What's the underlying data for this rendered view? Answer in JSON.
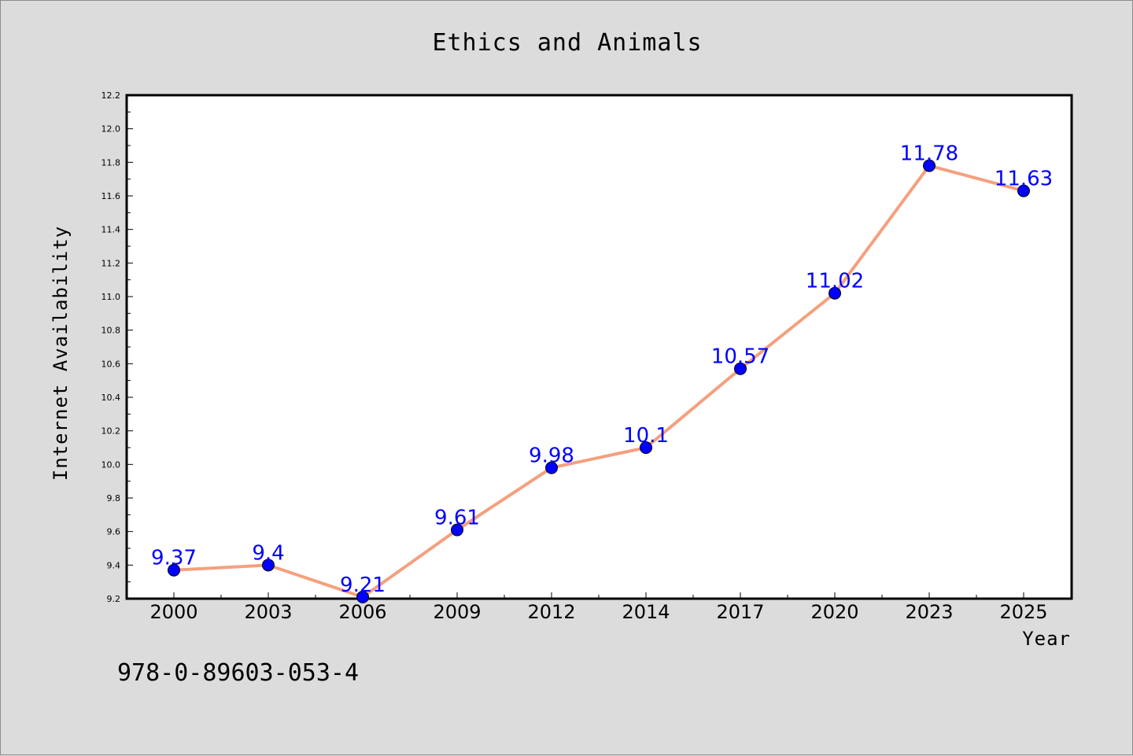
{
  "chart_data": {
    "type": "line",
    "title": "Ethics and Animals",
    "xlabel": "Year",
    "ylabel": "Internet Availability",
    "categories": [
      "2000",
      "2003",
      "2006",
      "2009",
      "2012",
      "2014",
      "2017",
      "2020",
      "2023",
      "2025"
    ],
    "series": [
      {
        "values": [
          9.37,
          9.4,
          9.21,
          9.61,
          9.98,
          10.1,
          10.57,
          11.02,
          11.78,
          11.63
        ]
      }
    ],
    "data_labels": [
      "9.37",
      "9.4",
      "9.21",
      "9.61",
      "9.98",
      "10.1",
      "10.57",
      "11.02",
      "11.78",
      "11.63"
    ],
    "ylim": [
      9.2,
      12.2
    ],
    "yticks": [
      "9.2",
      "9.4",
      "9.6",
      "9.8",
      "10.0",
      "10.2",
      "10.4",
      "10.6",
      "10.8",
      "11.0",
      "11.2",
      "11.4",
      "11.6",
      "11.8",
      "12.0",
      "12.2"
    ],
    "grid": false,
    "legend": "none",
    "colors": {
      "line": "#f4a07e",
      "marker": "#0000ff",
      "label": "#0000ff",
      "background": "#dcdcdc",
      "plot_area": "#ffffff"
    }
  },
  "footer": {
    "isbn": "978-0-89603-053-4"
  }
}
